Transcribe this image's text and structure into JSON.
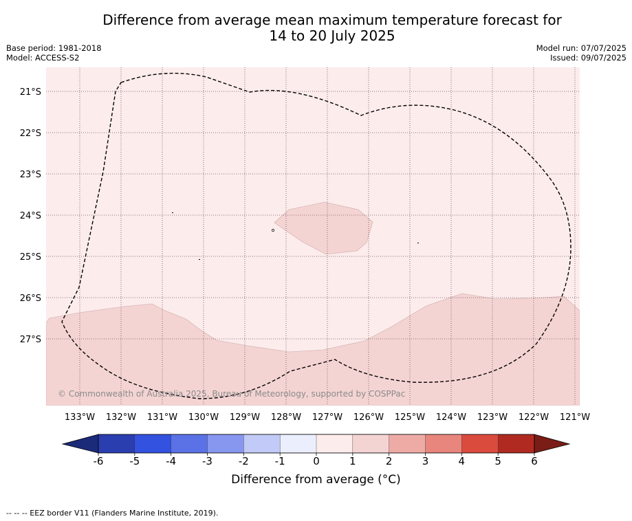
{
  "title": {
    "line1": "Difference from average mean maximum temperature forecast for",
    "line2": "14 to 20 July 2025"
  },
  "meta_left": {
    "base_period": "Base period: 1981-2018",
    "model": "Model: ACCESS-S2"
  },
  "meta_right": {
    "model_run": "Model run: 07/07/2025",
    "issued": "Issued: 09/07/2025"
  },
  "map": {
    "lat_labels": [
      "21°S",
      "22°S",
      "23°S",
      "24°S",
      "25°S",
      "26°S",
      "27°S"
    ],
    "lon_labels": [
      "133°W",
      "132°W",
      "131°W",
      "130°W",
      "129°W",
      "128°W",
      "127°W",
      "126°W",
      "125°W",
      "124°W",
      "123°W",
      "122°W",
      "121°W"
    ],
    "copyright": "© Commonwealth of Australia 2025, Bureau of Meteorology, supported by COSPPac",
    "background_color": "#fcecec",
    "anomaly_1_2_color": "#f4d4d3"
  },
  "colorbar": {
    "ticks": [
      "-6",
      "-5",
      "-4",
      "-3",
      "-2",
      "-1",
      "0",
      "1",
      "2",
      "3",
      "4",
      "5",
      "6"
    ],
    "colors": [
      "#2a3eb0",
      "#3352e0",
      "#5b72e6",
      "#8796ef",
      "#c2caf7",
      "#ebeefd",
      "#fcecec",
      "#f4d4d3",
      "#eeaba6",
      "#e8857c",
      "#da4b3e",
      "#b02a21"
    ],
    "low_extend_color": "#1c2a7a",
    "high_extend_color": "#7a1d16",
    "label": "Difference from average (°C)"
  },
  "footnote": "--  --  -- EEZ border V11 (Flanders Marine Institute, 2019)."
}
